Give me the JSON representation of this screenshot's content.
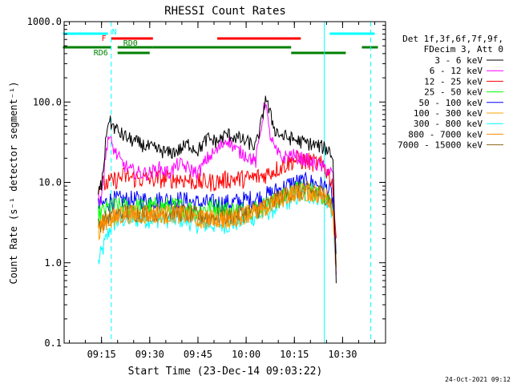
{
  "chart_data": {
    "type": "line",
    "title": "RHESSI Count Rates",
    "xlabel": "Start Time (23-Dec-14 09:03:22)",
    "ylabel": "Count Rate (s⁻¹ detector segment⁻¹)",
    "yscale": "log",
    "ylim": [
      0.1,
      1000.0
    ],
    "xlim": [
      "09:03:22",
      "10:43:22"
    ],
    "x_ticks": [
      "09:15",
      "09:30",
      "09:45",
      "10:00",
      "10:15",
      "10:30"
    ],
    "y_ticks": [
      "0.1",
      "1.0",
      "10.0",
      "100.0",
      "1000.0"
    ],
    "grid": false,
    "legend_placement": "right",
    "legend_header": [
      "Det 1f,3f,6f,7f,9f,",
      "FDecim 3, Att 0"
    ],
    "footer": "24-Oct-2021 09:12",
    "series": [
      {
        "name": "3 - 6 keV",
        "color": "#000000",
        "x": [
          "09:14",
          "09:15",
          "09:17",
          "09:19",
          "09:21",
          "09:24",
          "09:27",
          "09:30",
          "09:33",
          "09:36",
          "09:39",
          "09:42",
          "09:45",
          "09:48",
          "09:51",
          "09:54",
          "09:57",
          "10:00",
          "10:03",
          "10:05",
          "10:06",
          "10:07",
          "10:09",
          "10:11",
          "10:14",
          "10:17",
          "10:20",
          "10:23",
          "10:26",
          "10:27",
          "10:28"
        ],
        "values": [
          8,
          9,
          60,
          48,
          40,
          34,
          30,
          27,
          25,
          23,
          25,
          30,
          25,
          35,
          32,
          40,
          36,
          32,
          28,
          60,
          120,
          80,
          45,
          38,
          35,
          32,
          30,
          28,
          25,
          20,
          0.6
        ]
      },
      {
        "name": "6 - 12 keV",
        "color": "#ff00ff",
        "x": [
          "09:14",
          "09:15",
          "09:17",
          "09:19",
          "09:21",
          "09:24",
          "09:27",
          "09:30",
          "09:33",
          "09:36",
          "09:39",
          "09:42",
          "09:45",
          "09:48",
          "09:51",
          "09:54",
          "09:57",
          "10:00",
          "10:03",
          "10:05",
          "10:06",
          "10:07",
          "10:09",
          "10:11",
          "10:14",
          "10:17",
          "10:20",
          "10:23",
          "10:26",
          "10:27",
          "10:28"
        ],
        "values": [
          6,
          7,
          38,
          25,
          18,
          14,
          13,
          13,
          15,
          13,
          17,
          15,
          13,
          20,
          25,
          35,
          25,
          22,
          18,
          60,
          110,
          45,
          25,
          20,
          22,
          20,
          18,
          16,
          14,
          12,
          0.6
        ]
      },
      {
        "name": "12 - 25 keV",
        "color": "#ff0000",
        "x": [
          "09:14",
          "09:18",
          "09:22",
          "09:26",
          "09:30",
          "09:35",
          "09:40",
          "09:45",
          "09:50",
          "09:55",
          "10:00",
          "10:05",
          "10:10",
          "10:15",
          "10:20",
          "10:24",
          "10:26",
          "10:27",
          "10:28"
        ],
        "values": [
          9,
          10,
          12,
          11,
          11,
          11,
          11,
          10,
          10,
          11,
          11,
          12,
          15,
          19,
          18,
          16,
          12,
          9,
          2
        ]
      },
      {
        "name": "25 - 50 keV",
        "color": "#00ff00",
        "x": [
          "09:14",
          "09:18",
          "09:22",
          "09:26",
          "09:30",
          "09:35",
          "09:40",
          "09:45",
          "09:50",
          "09:55",
          "10:00",
          "10:05",
          "10:10",
          "10:15",
          "10:20",
          "10:24",
          "10:26",
          "10:27",
          "10:28"
        ],
        "values": [
          4,
          5,
          5,
          5,
          5,
          5,
          5,
          4.5,
          5,
          4.5,
          4.5,
          5,
          6,
          8,
          8,
          7,
          6,
          5,
          1
        ]
      },
      {
        "name": "50 - 100 keV",
        "color": "#0000ff",
        "x": [
          "09:14",
          "09:18",
          "09:22",
          "09:26",
          "09:30",
          "09:35",
          "09:40",
          "09:45",
          "09:50",
          "09:55",
          "10:00",
          "10:05",
          "10:10",
          "10:15",
          "10:20",
          "10:24",
          "10:26",
          "10:27",
          "10:28"
        ],
        "values": [
          5,
          6,
          6,
          6,
          6,
          6,
          6,
          5.5,
          5.5,
          5.5,
          6,
          6.5,
          8,
          10,
          10,
          9,
          8,
          6,
          1
        ]
      },
      {
        "name": "100 - 300 keV",
        "color": "#ffa500",
        "x": [
          "09:14",
          "09:18",
          "09:22",
          "09:26",
          "09:30",
          "09:35",
          "09:40",
          "09:45",
          "09:50",
          "09:55",
          "10:00",
          "10:05",
          "10:10",
          "10:15",
          "10:20",
          "10:24",
          "10:26",
          "10:27",
          "10:28"
        ],
        "values": [
          2.5,
          3.5,
          4,
          4,
          4,
          4,
          4,
          3.5,
          3.5,
          3.5,
          4,
          4.5,
          6,
          7.5,
          7.5,
          7,
          6,
          4.5,
          0.8
        ]
      },
      {
        "name": "300 - 800 keV",
        "color": "#00ffff",
        "x": [
          "09:14",
          "09:18",
          "09:22",
          "09:26",
          "09:30",
          "09:35",
          "09:40",
          "09:45",
          "09:50",
          "09:55",
          "10:00",
          "10:05",
          "10:10",
          "10:15",
          "10:20",
          "10:24",
          "10:26",
          "10:27",
          "10:28"
        ],
        "values": [
          1,
          3,
          3.5,
          3.5,
          3.5,
          3.5,
          3.5,
          3,
          3,
          3,
          3.5,
          4,
          5,
          6.5,
          7,
          6.5,
          5.5,
          4,
          0.8
        ]
      },
      {
        "name": "800 - 7000 keV",
        "color": "#ff8c00",
        "x": [
          "09:14",
          "09:18",
          "09:22",
          "09:26",
          "09:30",
          "09:35",
          "09:40",
          "09:45",
          "09:50",
          "09:55",
          "10:00",
          "10:05",
          "10:10",
          "10:15",
          "10:20",
          "10:24",
          "10:26",
          "10:27",
          "10:28"
        ],
        "values": [
          2.8,
          3.5,
          4,
          4,
          4,
          4,
          4,
          3.5,
          3.5,
          3.5,
          4,
          4.5,
          6,
          7.5,
          7.5,
          7,
          6,
          4.5,
          0.9
        ]
      },
      {
        "name": "7000 - 15000 keV",
        "color": "#8b6914",
        "x": [
          "09:14",
          "09:18",
          "09:22",
          "09:26",
          "09:30",
          "09:35",
          "09:40",
          "09:45",
          "09:50",
          "09:55",
          "10:00",
          "10:05",
          "10:10",
          "10:15",
          "10:20",
          "10:24",
          "10:26",
          "10:27",
          "10:28"
        ],
        "values": [
          3,
          3.8,
          4.2,
          4.2,
          4.2,
          4.2,
          4.2,
          3.8,
          3.8,
          3.8,
          4.2,
          4.8,
          6.2,
          7.8,
          7.8,
          7.2,
          6.2,
          4.8,
          1
        ]
      }
    ],
    "flag_bars": [
      {
        "label": "N",
        "color": "#00ffff",
        "segments": [
          [
            "09:03",
            "09:17"
          ],
          [
            "10:26",
            "10:40"
          ]
        ]
      },
      {
        "label": "F",
        "color": "#ff0000",
        "segments": [
          [
            "09:18",
            "09:31"
          ],
          [
            "09:51",
            "10:17"
          ]
        ]
      },
      {
        "label": "RD0",
        "color": "#008000",
        "segments": [
          [
            "09:03",
            "09:18"
          ],
          [
            "09:20",
            "09:31"
          ],
          [
            "09:31",
            "10:14"
          ],
          [
            "10:36",
            "10:41"
          ]
        ]
      },
      {
        "label": "RD6",
        "color": "#008000",
        "segments": [
          [
            "09:20",
            "09:30"
          ],
          [
            "10:14",
            "10:31"
          ]
        ]
      }
    ],
    "vertical_markers": [
      {
        "time": "09:03:22",
        "color": "#00ffff",
        "style": "solid"
      },
      {
        "time": "09:18:00",
        "color": "#00ffff",
        "style": "dashed"
      },
      {
        "time": "10:24:20",
        "color": "#00ffff",
        "style": "solid"
      },
      {
        "time": "10:38:45",
        "color": "#00ffff",
        "style": "dashed"
      }
    ]
  }
}
